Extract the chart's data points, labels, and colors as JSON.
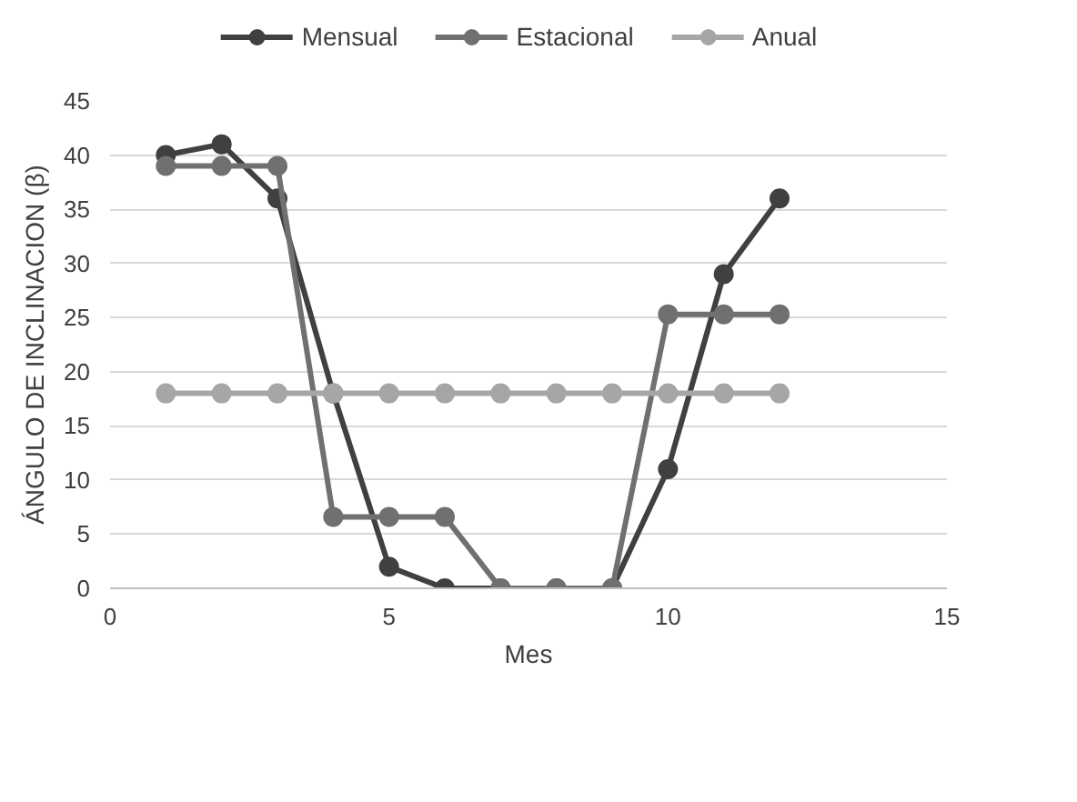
{
  "chart_data": {
    "type": "line",
    "xlabel": "Mes",
    "ylabel": "ÁNGULO DE INCLINACION (β)",
    "x": [
      1,
      2,
      3,
      4,
      5,
      6,
      7,
      8,
      9,
      10,
      11,
      12
    ],
    "series": [
      {
        "name": "Mensual",
        "color": "#404040",
        "values": [
          40,
          41,
          36,
          18,
          2,
          0,
          0,
          0,
          0,
          11,
          29,
          36
        ]
      },
      {
        "name": "Estacional",
        "color": "#707070",
        "values": [
          39,
          39,
          39,
          6.6,
          6.6,
          6.6,
          0,
          0,
          0,
          25.3,
          25.3,
          25.3
        ]
      },
      {
        "name": "Anual",
        "color": "#a6a6a6",
        "values": [
          18,
          18,
          18,
          18,
          18,
          18,
          18,
          18,
          18,
          18,
          18,
          18
        ]
      }
    ],
    "xlim": [
      0,
      15
    ],
    "xticks": [
      0,
      5,
      10,
      15
    ],
    "ylim": [
      0,
      45
    ],
    "yticks": [
      0,
      5,
      10,
      15,
      20,
      25,
      30,
      35,
      40,
      45
    ],
    "grid": "y",
    "legend": "top",
    "marker": "circle",
    "line_style": "solid"
  }
}
